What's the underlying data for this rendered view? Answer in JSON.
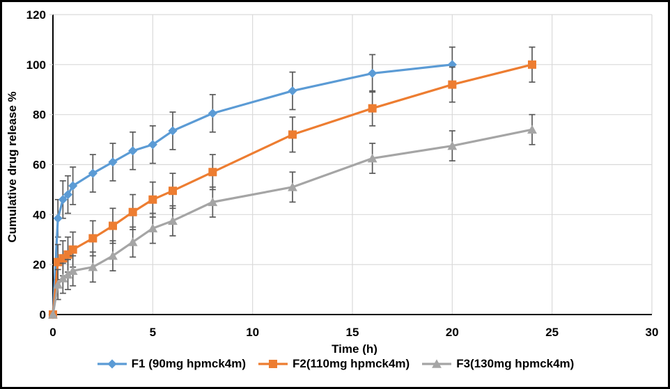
{
  "chart_data": {
    "type": "line",
    "title": "",
    "xlabel": "Time (h)",
    "ylabel": "Cumulative drug release %",
    "xlim": [
      0,
      30
    ],
    "ylim": [
      0,
      120
    ],
    "x_ticks": [
      0,
      5,
      10,
      15,
      20,
      25,
      30
    ],
    "y_ticks": [
      0,
      20,
      40,
      60,
      80,
      100,
      120
    ],
    "grid": true,
    "legend_position": "bottom",
    "gridline_color": "#D9D9D9",
    "axis_color": "#000000",
    "error_bar_color": "#595959",
    "series": [
      {
        "name": "F1 (90mg hpmck4m)",
        "marker": "diamond",
        "color": "#5B9BD5",
        "x": [
          0,
          0.25,
          0.5,
          0.75,
          1,
          2,
          3,
          4,
          5,
          6,
          8,
          12,
          16,
          20
        ],
        "y": [
          0,
          38.5,
          46,
          48,
          51.5,
          56.5,
          61,
          65.5,
          68,
          73.5,
          80.5,
          89.5,
          96.5,
          100
        ],
        "yerr": [
          0,
          7.5,
          7.5,
          7.5,
          7.5,
          7.5,
          7.5,
          7.5,
          7.5,
          7.5,
          7.5,
          7.5,
          7.5,
          7
        ]
      },
      {
        "name": "F2(110mg hpmck4m)",
        "marker": "square",
        "color": "#ED7D31",
        "x": [
          0,
          0.25,
          0.5,
          0.75,
          1,
          2,
          3,
          4,
          5,
          6,
          8,
          12,
          16,
          20,
          24
        ],
        "y": [
          0,
          21,
          22.5,
          24,
          26,
          30.5,
          35.5,
          41,
          46,
          49.5,
          57,
          72,
          82.5,
          92,
          100
        ],
        "yerr": [
          0,
          7,
          7,
          7,
          7,
          7,
          7,
          7,
          7,
          7,
          7,
          7,
          7,
          7,
          7
        ]
      },
      {
        "name": "F3(130mg hpmck4m)",
        "marker": "triangle",
        "color": "#A5A5A5",
        "x": [
          0,
          0.25,
          0.5,
          0.75,
          1,
          2,
          3,
          4,
          5,
          6,
          8,
          12,
          16,
          20,
          24
        ],
        "y": [
          0,
          12,
          14.5,
          16,
          17.5,
          19,
          23.5,
          29,
          34.5,
          37.5,
          45,
          51,
          62.5,
          67.5,
          74
        ],
        "yerr": [
          0,
          6,
          6,
          6,
          6,
          6,
          6,
          6,
          6,
          6,
          6,
          6,
          6,
          6,
          6
        ]
      }
    ]
  }
}
